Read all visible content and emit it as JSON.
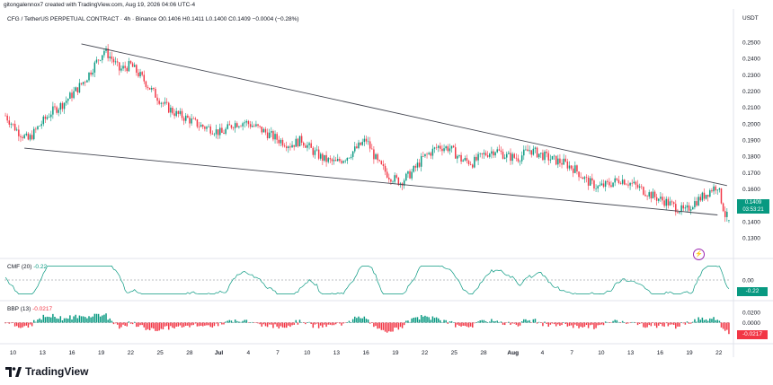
{
  "header": {
    "credit": "gitongalennox7 created with TradingView.com, Aug 19, 2026 04:06 UTC-4"
  },
  "symbol": {
    "name": "CFG / TetherUS PERPETUAL CONTRACT · 4h · Binance",
    "ohlc": "O0.1406 H0.1411 L0.1400 C0.1409 −0.0004 (−0.28%)"
  },
  "currency": "USDT",
  "last_price_tag": {
    "price": "0.1409",
    "countdown": "03:53:21",
    "color": "#089981"
  },
  "cmf": {
    "label": "CMF (20)",
    "value": "-0.22",
    "tag": "-0.22",
    "color": "#089981"
  },
  "bbp": {
    "label": "BBP (13)",
    "value": "-0.0217",
    "tag": "-0.0217",
    "color": "#f23645"
  },
  "logo": "TradingView",
  "colors": {
    "up": "#089981",
    "down": "#f23645",
    "trendline": "#434651",
    "cmf_line": "#089981"
  },
  "chart_data": [
    {
      "type": "candlestick",
      "title": "CFG / TetherUS PERPETUAL CONTRACT · 4h · Binance",
      "ylabel": "USDT",
      "ylim": [
        0.125,
        0.255
      ],
      "y_ticks": [
        "0.2500",
        "0.2400",
        "0.2300",
        "0.2200",
        "0.2100",
        "0.2000",
        "0.1900",
        "0.1800",
        "0.1700",
        "0.1600",
        "0.1500",
        "0.1400",
        "0.1300"
      ],
      "x_ticks": [
        "10",
        "13",
        "16",
        "19",
        "22",
        "25",
        "28",
        "Jul",
        "4",
        "7",
        "10",
        "13",
        "16",
        "19",
        "22",
        "25",
        "28",
        "Aug",
        "4",
        "7",
        "10",
        "13",
        "16",
        "19",
        "22"
      ],
      "close_path": [
        [
          0,
          0.205
        ],
        [
          6,
          0.196
        ],
        [
          12,
          0.19
        ],
        [
          18,
          0.199
        ],
        [
          24,
          0.207
        ],
        [
          30,
          0.212
        ],
        [
          36,
          0.219
        ],
        [
          42,
          0.227
        ],
        [
          48,
          0.238
        ],
        [
          52,
          0.245
        ],
        [
          56,
          0.24
        ],
        [
          60,
          0.233
        ],
        [
          66,
          0.236
        ],
        [
          72,
          0.228
        ],
        [
          78,
          0.219
        ],
        [
          84,
          0.211
        ],
        [
          90,
          0.206
        ],
        [
          96,
          0.203
        ],
        [
          102,
          0.199
        ],
        [
          108,
          0.197
        ],
        [
          114,
          0.194
        ],
        [
          120,
          0.2
        ],
        [
          126,
          0.201
        ],
        [
          132,
          0.198
        ],
        [
          138,
          0.194
        ],
        [
          144,
          0.19
        ],
        [
          150,
          0.187
        ],
        [
          156,
          0.19
        ],
        [
          162,
          0.183
        ],
        [
          168,
          0.178
        ],
        [
          174,
          0.176
        ],
        [
          180,
          0.18
        ],
        [
          186,
          0.186
        ],
        [
          190,
          0.19
        ],
        [
          196,
          0.176
        ],
        [
          202,
          0.168
        ],
        [
          208,
          0.164
        ],
        [
          214,
          0.17
        ],
        [
          220,
          0.179
        ],
        [
          228,
          0.186
        ],
        [
          234,
          0.185
        ],
        [
          240,
          0.178
        ],
        [
          246,
          0.176
        ],
        [
          252,
          0.181
        ],
        [
          258,
          0.184
        ],
        [
          264,
          0.18
        ],
        [
          270,
          0.179
        ],
        [
          276,
          0.184
        ],
        [
          282,
          0.181
        ],
        [
          288,
          0.178
        ],
        [
          294,
          0.176
        ],
        [
          300,
          0.172
        ],
        [
          306,
          0.165
        ],
        [
          312,
          0.161
        ],
        [
          318,
          0.163
        ],
        [
          324,
          0.166
        ],
        [
          330,
          0.163
        ],
        [
          336,
          0.159
        ],
        [
          342,
          0.155
        ],
        [
          348,
          0.152
        ],
        [
          354,
          0.148
        ],
        [
          358,
          0.146
        ],
        [
          362,
          0.151
        ],
        [
          368,
          0.156
        ],
        [
          372,
          0.16
        ],
        [
          375,
          0.162
        ],
        [
          379,
          0.144
        ],
        [
          382,
          0.141
        ]
      ],
      "n_candles": 382,
      "last": {
        "open": 0.1406,
        "high": 0.1411,
        "low": 0.14,
        "close": 0.1409
      },
      "trendlines": [
        {
          "name": "upper",
          "from": [
            40,
            0.249
          ],
          "to": [
            380,
            0.162
          ]
        },
        {
          "name": "lower",
          "from": [
            10,
            0.185
          ],
          "to": [
            375,
            0.144
          ]
        }
      ]
    },
    {
      "type": "line",
      "title": "CMF (20)",
      "ylim": [
        -0.45,
        0.45
      ],
      "y_ticks": [
        "0.00"
      ],
      "last_value": -0.22,
      "zero_line": true
    },
    {
      "type": "histogram",
      "title": "BBP (13)",
      "ylim": [
        -0.035,
        0.035
      ],
      "y_ticks": [
        "0.0200",
        "0.0000",
        "-0.0200"
      ],
      "last_value": -0.0217
    }
  ]
}
